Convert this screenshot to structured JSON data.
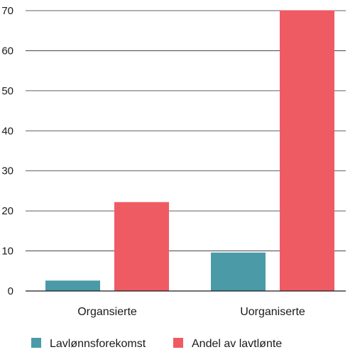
{
  "chart_data": {
    "type": "bar",
    "categories": [
      "Organsierte",
      "Uorganiserte"
    ],
    "series": [
      {
        "name": "Lavlønnsforekomst",
        "values": [
          2.6,
          9.6
        ],
        "color": "#4a9aa8"
      },
      {
        "name": "Andel av lavtlønte",
        "values": [
          22.2,
          70.1
        ],
        "color": "#ef5b63"
      }
    ],
    "yticks": [
      "0",
      "10",
      "20",
      "30",
      "40",
      "50",
      "60",
      "70"
    ],
    "ylim": [
      0,
      70
    ],
    "grid": true,
    "legend_position": "bottom"
  }
}
